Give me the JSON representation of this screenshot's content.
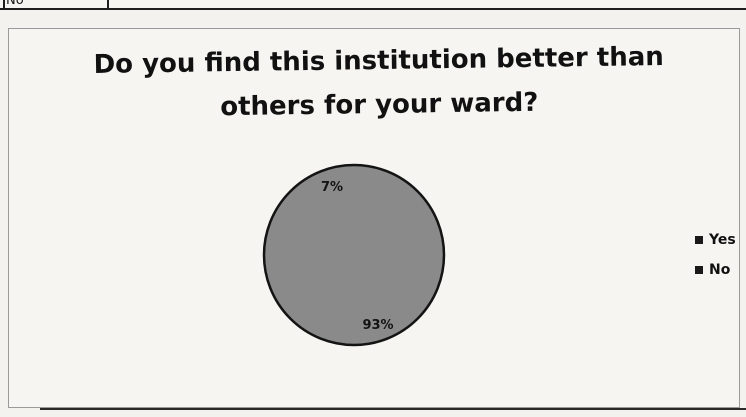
{
  "table_fragment": {
    "cell_label": "No"
  },
  "chart_data": {
    "type": "pie",
    "title": "Do you find this institution better than others for your ward?",
    "categories": [
      "Yes",
      "No"
    ],
    "values": [
      93,
      7
    ],
    "data_labels": [
      "93%",
      "7%"
    ],
    "colors": [
      "#8a8a8a",
      "#8a8a8a"
    ],
    "legend_position": "right"
  },
  "legend": {
    "items": [
      {
        "label": "Yes",
        "color": "#1a1a1a"
      },
      {
        "label": "No",
        "color": "#1a1a1a"
      }
    ]
  }
}
